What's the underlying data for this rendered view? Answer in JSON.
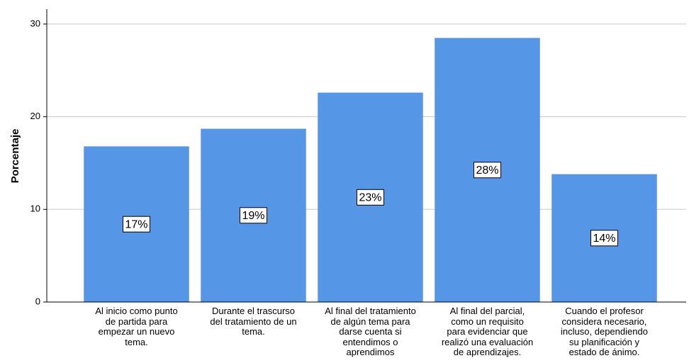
{
  "chart_data": {
    "type": "bar",
    "y_label": "Porcentaje",
    "categories": [
      "Al inicio como punto\nde partida para\nempezar un nuevo\ntema.",
      "Durante el trascurso\ndel tratamiento de un\ntema.",
      "Al final del tratamiento\nde algún tema para\ndarse cuenta si\nentendimos o\naprendimos",
      "Al final del parcial,\ncomo un requisito\npara evidenciar que\nrealizó una evaluación\nde aprendizajes.",
      "Cuando el profesor\nconsidera necesario,\nincluso, dependiendo\nsu planificación y\nestado de ánimo."
    ],
    "values": [
      16.8,
      18.7,
      22.6,
      28.5,
      13.8
    ],
    "value_labels": [
      "17%",
      "19%",
      "23%",
      "28%",
      "14%"
    ],
    "color": "#5596e6",
    "ylim": [
      0,
      31.6
    ],
    "yticks": [
      0,
      10,
      20,
      30
    ],
    "grid": true
  }
}
